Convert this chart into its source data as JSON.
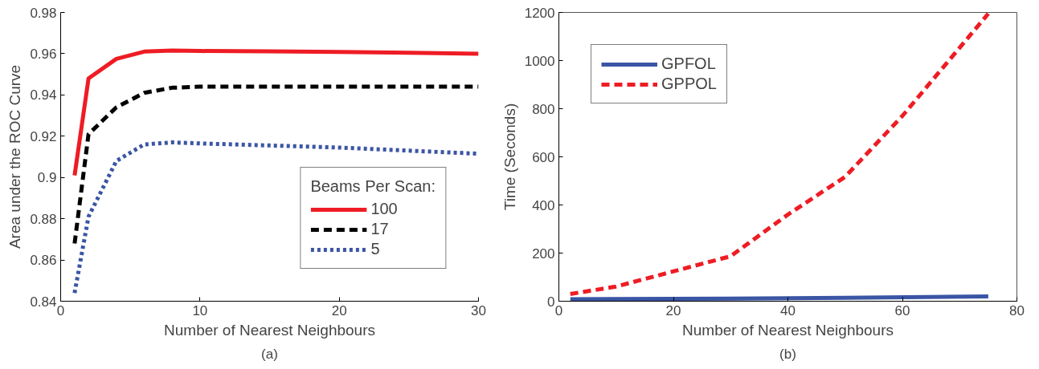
{
  "chart_data": [
    {
      "type": "line",
      "xlabel": "Number of Nearest Neighbours",
      "ylabel": "Area under the ROC Curve",
      "legend_title": "Beams Per Scan:",
      "legend": "bottom right",
      "grid": false,
      "xlim": [
        0,
        30
      ],
      "xticks": [
        0,
        10,
        20,
        30
      ],
      "ylim": [
        0.84,
        0.98
      ],
      "yticks": [
        0.84,
        0.86,
        0.88,
        0.9,
        0.92,
        0.94,
        0.96,
        0.98
      ],
      "annotations": [
        "(a)"
      ],
      "x": [
        1,
        2,
        4,
        6,
        8,
        10,
        15,
        20,
        25,
        30
      ],
      "series": [
        {
          "name": "100",
          "color": "#ee1c24",
          "line_style": "solid",
          "values": [
            0.901,
            0.948,
            0.9575,
            0.961,
            0.9615,
            0.9613,
            0.9611,
            0.9608,
            0.9605,
            0.96
          ]
        },
        {
          "name": "17",
          "color": "#000000",
          "line_style": "dashed",
          "values": [
            0.868,
            0.921,
            0.934,
            0.941,
            0.9435,
            0.944,
            0.944,
            0.944,
            0.944,
            0.944
          ]
        },
        {
          "name": "5",
          "color": "#3a55a4",
          "line_style": "dotted",
          "values": [
            0.844,
            0.881,
            0.908,
            0.916,
            0.917,
            0.9165,
            0.9155,
            0.9145,
            0.913,
            0.9115
          ]
        }
      ]
    },
    {
      "type": "line",
      "xlabel": "Number of Nearest Neighbours",
      "ylabel": "Time (Seconds)",
      "legend": "top left",
      "grid": false,
      "xlim": [
        0,
        80
      ],
      "xticks": [
        0,
        20,
        40,
        60,
        80
      ],
      "ylim": [
        0,
        1200
      ],
      "yticks": [
        0,
        200,
        400,
        600,
        800,
        1000,
        1200
      ],
      "annotations": [
        "(b)"
      ],
      "series": [
        {
          "name": "GPFOL",
          "color": "#3a55a4",
          "line_style": "solid",
          "x": [
            2,
            10,
            30,
            50,
            75
          ],
          "values": [
            8,
            9,
            11,
            14,
            20
          ]
        },
        {
          "name": "GPPOL",
          "color": "#ee1c24",
          "line_style": "dashed",
          "x": [
            2,
            10,
            30,
            40,
            50,
            60,
            75
          ],
          "values": [
            30,
            61,
            187,
            360,
            517,
            770,
            1195
          ]
        }
      ]
    }
  ]
}
